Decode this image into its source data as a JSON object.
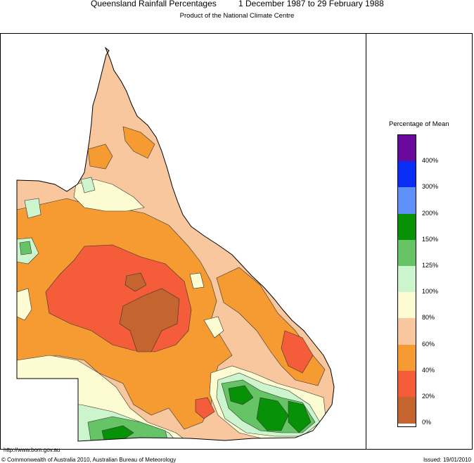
{
  "header": {
    "title": "Queensland Rainfall Percentages",
    "period": "1 December 1987 to 29 February 1988",
    "subtitle": "Product of the National Climate Centre"
  },
  "legend": {
    "title": "Percentage of Mean",
    "bands": [
      {
        "color": "#6a0a9c"
      },
      {
        "color": "#0a2df5",
        "label": "400%"
      },
      {
        "color": "#5f8ff8",
        "label": "300%"
      },
      {
        "color": "#079107",
        "label": "200%"
      },
      {
        "color": "#66c466",
        "label": "150%"
      },
      {
        "color": "#cdf5cd",
        "label": "125%"
      },
      {
        "color": "#fdfbd1",
        "label": "100%"
      },
      {
        "color": "#f8c79e",
        "label": "80%"
      },
      {
        "color": "#f69a32",
        "label": "60%"
      },
      {
        "color": "#f55d3a",
        "label": "40%"
      },
      {
        "color": "#c4642f",
        "label": "20%"
      },
      {
        "label": "0%"
      }
    ]
  },
  "footer": {
    "url": "http://www.bom.gov.au",
    "copyright": "© Commonwealth of Australia 2010, Australian Bureau of Meteorology",
    "issued": "Issued: 19/01/2010"
  }
}
